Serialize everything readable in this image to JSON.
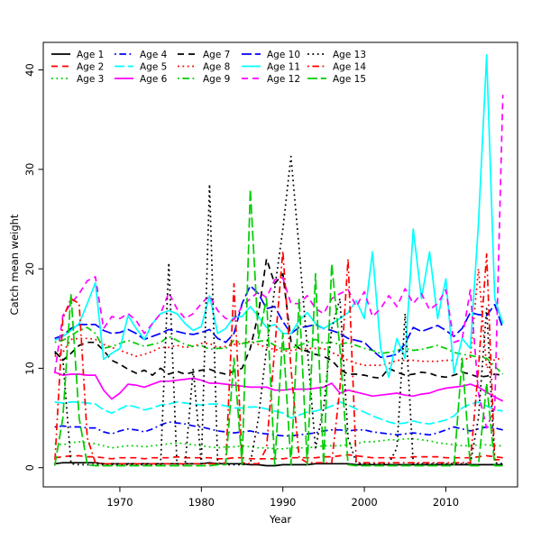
{
  "chart_data": {
    "type": "line",
    "title": "",
    "xlabel": "Year",
    "ylabel": "Catch mean weight",
    "legend_position": "top-left-inside",
    "grid": false,
    "xlim": [
      1960.6,
      2018.8
    ],
    "ylim": [
      -1.93,
      42.77
    ],
    "xticks": [
      1970,
      1980,
      1990,
      2000,
      2010
    ],
    "yticks": [
      0,
      10,
      20,
      30,
      40
    ],
    "x": [
      1962,
      1963,
      1964,
      1965,
      1966,
      1967,
      1968,
      1969,
      1970,
      1971,
      1972,
      1973,
      1974,
      1975,
      1976,
      1977,
      1978,
      1979,
      1980,
      1981,
      1982,
      1983,
      1984,
      1985,
      1986,
      1987,
      1988,
      1989,
      1990,
      1991,
      1992,
      1993,
      1994,
      1995,
      1996,
      1997,
      1998,
      1999,
      2000,
      2001,
      2002,
      2003,
      2004,
      2005,
      2006,
      2007,
      2008,
      2009,
      2010,
      2011,
      2012,
      2013,
      2014,
      2015,
      2016,
      2017
    ],
    "series": [
      {
        "name": "Age 1",
        "color": "#000000",
        "style": "solid",
        "values": [
          0.4,
          0.5,
          0.5,
          0.5,
          0.5,
          0.5,
          0.4,
          0.4,
          0.4,
          0.4,
          0.4,
          0.4,
          0.4,
          0.4,
          0.4,
          0.4,
          0.4,
          0.4,
          0.4,
          0.5,
          0.4,
          0.4,
          0.4,
          0.4,
          0.3,
          0.3,
          0.2,
          0.2,
          0.3,
          0.3,
          0.3,
          0.3,
          0.4,
          0.4,
          0.4,
          0.4,
          0.4,
          0.3,
          0.3,
          0.3,
          0.3,
          0.3,
          0.3,
          0.3,
          0.3,
          0.3,
          0.3,
          0.3,
          0.3,
          0.3,
          0.3,
          0.3,
          0.3,
          0.3,
          0.3,
          0.3
        ]
      },
      {
        "name": "Age 2",
        "color": "#ff0000",
        "style": "dashed",
        "values": [
          1.0,
          1.1,
          1.2,
          1.2,
          1.1,
          1.1,
          1.0,
          0.9,
          1.0,
          1.0,
          1.0,
          0.9,
          1.0,
          1.0,
          1.0,
          1.1,
          1.0,
          1.0,
          1.0,
          1.0,
          0.9,
          0.9,
          1.0,
          1.0,
          0.9,
          0.9,
          0.9,
          0.9,
          0.9,
          1.0,
          1.0,
          1.0,
          1.0,
          1.1,
          1.1,
          1.2,
          1.3,
          1.2,
          1.1,
          1.0,
          1.0,
          1.0,
          1.0,
          1.0,
          1.1,
          1.1,
          1.1,
          1.1,
          1.0,
          1.0,
          1.0,
          1.0,
          1.1,
          1.2,
          1.1,
          1.0
        ]
      },
      {
        "name": "Age 3",
        "color": "#00cc00",
        "style": "dotted",
        "values": [
          2.4,
          2.3,
          2.5,
          2.6,
          2.5,
          2.4,
          2.2,
          2.0,
          2.1,
          2.2,
          2.2,
          2.1,
          2.2,
          2.3,
          2.4,
          2.5,
          2.4,
          2.3,
          2.2,
          2.1,
          2.0,
          2.1,
          2.1,
          2.2,
          2.1,
          2.0,
          2.0,
          1.9,
          1.9,
          2.0,
          2.0,
          2.0,
          2.1,
          2.2,
          2.2,
          2.2,
          2.3,
          2.4,
          2.6,
          2.6,
          2.7,
          2.8,
          2.8,
          2.9,
          2.9,
          2.8,
          2.7,
          2.5,
          2.4,
          2.3,
          2.2,
          2.2,
          2.3,
          2.3,
          2.2,
          2.2
        ]
      },
      {
        "name": "Age 4",
        "color": "#0000ff",
        "style": "dotdash",
        "values": [
          4.1,
          4.2,
          4.1,
          4.1,
          4.0,
          4.0,
          3.6,
          3.4,
          3.7,
          3.9,
          3.8,
          3.6,
          3.9,
          4.3,
          4.6,
          4.5,
          4.4,
          4.2,
          4.1,
          3.9,
          3.7,
          3.6,
          3.5,
          3.6,
          3.7,
          3.5,
          3.4,
          3.3,
          3.2,
          3.2,
          3.3,
          3.4,
          3.5,
          3.7,
          3.8,
          3.8,
          3.7,
          3.8,
          3.8,
          3.6,
          3.5,
          3.4,
          3.3,
          3.4,
          3.5,
          3.4,
          3.3,
          3.5,
          3.8,
          4.1,
          3.9,
          3.7,
          3.9,
          4.1,
          4.0,
          3.8
        ]
      },
      {
        "name": "Age 5",
        "color": "#00ffff",
        "style": "longdash",
        "values": [
          6.6,
          6.5,
          6.6,
          6.6,
          6.5,
          6.4,
          5.8,
          5.5,
          5.9,
          6.3,
          6.1,
          5.8,
          6.0,
          6.3,
          6.4,
          6.6,
          6.5,
          6.4,
          6.3,
          6.4,
          6.4,
          6.2,
          6.0,
          6.0,
          6.1,
          6.1,
          5.9,
          5.7,
          5.5,
          5.0,
          5.3,
          5.6,
          5.7,
          5.9,
          6.2,
          6.6,
          6.3,
          5.9,
          5.6,
          5.2,
          4.9,
          4.6,
          4.4,
          4.5,
          4.7,
          4.5,
          4.4,
          4.6,
          4.8,
          5.2,
          6.0,
          6.4,
          6.6,
          6.2,
          5.8,
          5.7
        ]
      },
      {
        "name": "Age 6",
        "color": "#ff00ff",
        "style": "solid",
        "values": [
          9.6,
          9.3,
          9.4,
          9.4,
          9.3,
          9.3,
          7.8,
          6.9,
          7.5,
          8.4,
          8.3,
          8.1,
          8.4,
          8.7,
          8.7,
          8.8,
          8.9,
          9.0,
          8.8,
          8.5,
          8.5,
          8.4,
          8.3,
          8.2,
          8.1,
          8.1,
          8.1,
          7.8,
          7.8,
          7.9,
          7.9,
          7.9,
          8.0,
          8.1,
          8.5,
          7.5,
          7.8,
          7.6,
          7.4,
          7.2,
          7.3,
          7.4,
          7.5,
          7.3,
          7.2,
          7.4,
          7.5,
          7.8,
          8.0,
          8.1,
          8.2,
          8.4,
          8.1,
          7.6,
          7.1,
          6.7
        ]
      },
      {
        "name": "Age 7",
        "color": "#000000",
        "style": "dashed",
        "values": [
          11.7,
          10.8,
          11.5,
          12.3,
          12.6,
          12.6,
          11.8,
          10.8,
          10.4,
          9.9,
          9.5,
          9.8,
          9.3,
          10.0,
          9.4,
          9.7,
          9.4,
          9.6,
          9.8,
          9.9,
          9.6,
          9.4,
          9.7,
          10.0,
          12.0,
          15.5,
          21.0,
          18.5,
          19.5,
          12.7,
          12.0,
          11.7,
          11.4,
          11.2,
          10.8,
          9.9,
          9.4,
          9.4,
          9.3,
          9.1,
          9.0,
          10.0,
          9.6,
          9.3,
          9.4,
          9.6,
          9.5,
          9.2,
          9.1,
          9.3,
          9.6,
          9.4,
          9.1,
          9.2,
          9.4,
          9.3
        ]
      },
      {
        "name": "Age 8",
        "color": "#ff0000",
        "style": "dotted",
        "values": [
          11.2,
          11.6,
          12.9,
          13.0,
          13.0,
          12.9,
          12.4,
          12.1,
          11.8,
          11.5,
          11.2,
          11.4,
          11.7,
          12.1,
          12.1,
          12.3,
          12.1,
          12.2,
          12.5,
          12.5,
          12.1,
          12.2,
          12.4,
          12.5,
          12.7,
          12.4,
          12.1,
          11.9,
          11.7,
          11.8,
          11.9,
          12.0,
          12.0,
          12.0,
          11.6,
          11.2,
          10.8,
          10.5,
          10.3,
          10.3,
          10.3,
          10.5,
          10.8,
          10.8,
          10.8,
          10.7,
          10.7,
          10.7,
          10.8,
          10.8,
          10.9,
          11.0,
          20.0,
          10.0,
          10.9,
          11.0
        ]
      },
      {
        "name": "Age 9",
        "color": "#00cc00",
        "style": "dotdash",
        "values": [
          12.6,
          12.8,
          13.3,
          13.8,
          14.1,
          13.5,
          12.0,
          12.2,
          12.5,
          12.8,
          12.5,
          12.2,
          12.4,
          12.6,
          13.2,
          12.8,
          12.4,
          12.2,
          12.3,
          11.9,
          12.0,
          12.0,
          12.8,
          12.5,
          12.6,
          12.7,
          12.8,
          12.3,
          11.9,
          12.0,
          12.3,
          12.6,
          12.9,
          12.5,
          12.6,
          12.4,
          12.6,
          12.3,
          12.0,
          11.8,
          11.5,
          11.6,
          11.8,
          12.0,
          11.8,
          11.9,
          12.1,
          12.3,
          12.0,
          11.6,
          11.4,
          11.3,
          11.1,
          11.0,
          10.2,
          9.4
        ]
      },
      {
        "name": "Age 10",
        "color": "#0000ff",
        "style": "longdash",
        "values": [
          13.0,
          13.3,
          14.0,
          14.4,
          14.4,
          14.4,
          13.8,
          13.5,
          13.6,
          13.9,
          13.5,
          12.9,
          13.2,
          13.5,
          13.9,
          13.7,
          13.5,
          13.4,
          13.6,
          13.9,
          13.0,
          12.6,
          13.5,
          16.5,
          18.3,
          17.5,
          16.0,
          16.2,
          14.7,
          13.5,
          14.1,
          14.2,
          14.4,
          14.0,
          13.8,
          13.5,
          13.0,
          12.8,
          12.6,
          11.8,
          11.1,
          11.2,
          11.4,
          12.5,
          14.1,
          13.7,
          14.0,
          14.3,
          13.8,
          13.2,
          14.0,
          15.6,
          15.4,
          15.3,
          16.4,
          14.0
        ]
      },
      {
        "name": "Age 11",
        "color": "#00ffff",
        "style": "solid",
        "values": [
          12.8,
          13.2,
          13.8,
          14.5,
          16.5,
          18.6,
          10.9,
          11.5,
          12.0,
          15.3,
          14.0,
          12.9,
          14.5,
          15.5,
          15.8,
          15.5,
          14.5,
          13.8,
          14.2,
          17.3,
          13.5,
          14.0,
          15.2,
          15.2,
          16.2,
          15.2,
          14.1,
          14.4,
          13.5,
          13.5,
          14.8,
          15.6,
          14.5,
          14.0,
          14.5,
          15.0,
          15.6,
          16.8,
          15.0,
          21.7,
          12.0,
          9.1,
          13.0,
          11.0,
          24.0,
          17.0,
          21.7,
          15.0,
          19.0,
          9.5,
          13.0,
          12.0,
          24.5,
          41.5,
          17.0,
          14.5
        ]
      },
      {
        "name": "Age 12",
        "color": "#ff00ff",
        "style": "dashed",
        "values": [
          9.5,
          15.3,
          16.5,
          17.5,
          18.8,
          19.2,
          14.0,
          15.2,
          15.0,
          15.5,
          14.8,
          13.5,
          14.5,
          15.5,
          17.6,
          16.0,
          15.0,
          15.5,
          16.5,
          17.3,
          15.8,
          15.0,
          14.9,
          16.2,
          17.0,
          17.7,
          17.1,
          18.9,
          19.1,
          16.5,
          16.5,
          17.3,
          16.0,
          15.5,
          17.0,
          17.5,
          17.9,
          16.2,
          17.7,
          15.2,
          16.0,
          17.3,
          16.2,
          18.0,
          16.5,
          17.5,
          15.9,
          16.5,
          17.9,
          12.6,
          12.9,
          17.9,
          7.5,
          4.0,
          6.0,
          37.5
        ]
      },
      {
        "name": "Age 13",
        "color": "#000000",
        "style": "dotted",
        "values": [
          11.5,
          11.0,
          0.4,
          0.3,
          0.3,
          0.3,
          0.3,
          0.3,
          0.3,
          0.3,
          0.3,
          0.3,
          0.3,
          0.3,
          20.6,
          0.4,
          0.3,
          10.0,
          0.4,
          28.5,
          0.5,
          0.3,
          0.3,
          0.3,
          0.4,
          5.0,
          12.0,
          18.0,
          24.0,
          31.3,
          22.0,
          12.0,
          2.0,
          6.0,
          14.0,
          17.0,
          3.0,
          0.5,
          0.4,
          0.4,
          0.4,
          0.4,
          2.0,
          15.5,
          0.4,
          0.4,
          0.4,
          0.4,
          0.4,
          0.4,
          0.4,
          0.4,
          5.0,
          16.0,
          0.5,
          0.4
        ]
      },
      {
        "name": "Age 14",
        "color": "#ff0000",
        "style": "dotdash",
        "values": [
          0.3,
          15.0,
          17.0,
          16.5,
          3.0,
          0.5,
          0.4,
          0.4,
          0.4,
          0.4,
          0.4,
          0.4,
          0.4,
          0.4,
          0.4,
          0.4,
          0.4,
          0.4,
          0.4,
          0.4,
          0.4,
          0.5,
          18.5,
          0.5,
          0.4,
          0.4,
          2.0,
          12.0,
          21.8,
          10.0,
          1.0,
          0.5,
          0.5,
          0.5,
          0.5,
          8.0,
          21.0,
          0.5,
          0.5,
          0.5,
          0.5,
          0.5,
          0.5,
          0.5,
          0.5,
          0.5,
          0.5,
          0.5,
          0.5,
          0.5,
          0.5,
          0.5,
          10.0,
          21.5,
          0.8,
          0.8
        ]
      },
      {
        "name": "Age 15",
        "color": "#00cc00",
        "style": "longdash",
        "values": [
          0.2,
          5.0,
          17.5,
          5.0,
          0.3,
          0.2,
          0.2,
          0.2,
          0.2,
          0.2,
          0.2,
          0.2,
          0.2,
          0.2,
          0.2,
          0.2,
          0.2,
          0.2,
          0.2,
          0.2,
          0.3,
          0.3,
          11.0,
          0.3,
          28.0,
          13.0,
          17.0,
          0.3,
          13.5,
          0.3,
          17.0,
          0.3,
          19.5,
          0.3,
          20.5,
          12.0,
          0.3,
          0.2,
          0.2,
          0.2,
          0.2,
          0.2,
          0.2,
          0.2,
          0.2,
          0.2,
          0.2,
          0.2,
          0.2,
          0.2,
          11.0,
          0.2,
          0.2,
          8.5,
          0.2,
          0.2
        ]
      }
    ]
  }
}
